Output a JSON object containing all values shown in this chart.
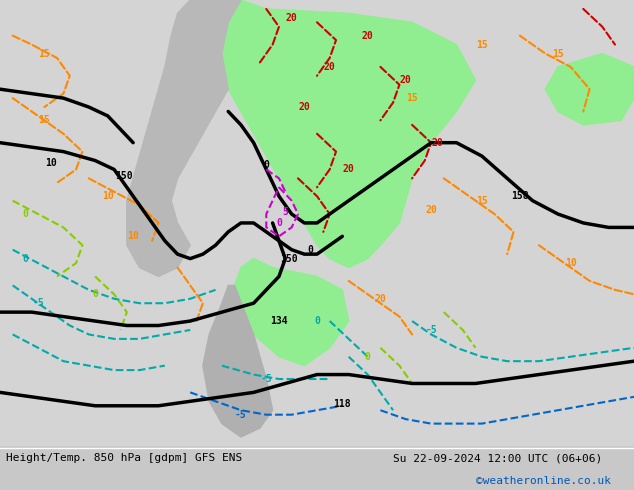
{
  "title_left": "Height/Temp. 850 hPa [gdpm] GFS ENS",
  "title_right": "Su 22-09-2024 12:00 UTC (06+06)",
  "credit": "©weatheronline.co.uk",
  "bg_color": "#d0d0d0",
  "land_color": "#c8c8c8",
  "highlight_green": "#90ee90",
  "fig_width": 6.34,
  "fig_height": 4.9,
  "dpi": 100
}
